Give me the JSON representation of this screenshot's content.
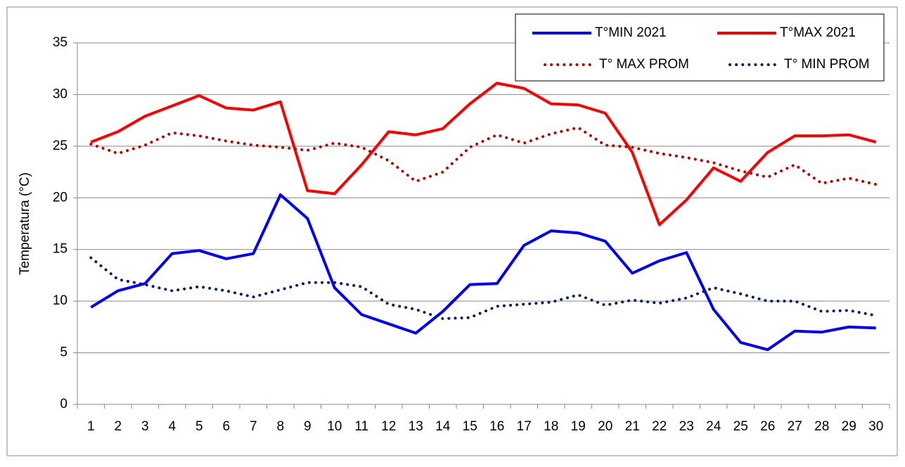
{
  "chart_data": {
    "type": "line",
    "ylabel": "Temperatura (°C)",
    "categories": [
      "1",
      "2",
      "3",
      "4",
      "5",
      "6",
      "7",
      "8",
      "9",
      "10",
      "11",
      "12",
      "13",
      "14",
      "15",
      "16",
      "17",
      "18",
      "19",
      "20",
      "21",
      "22",
      "23",
      "24",
      "25",
      "26",
      "27",
      "28",
      "29",
      "30"
    ],
    "series": [
      {
        "name": "T°MIN 2021",
        "color": "#0000ff",
        "style": "solid",
        "values": [
          9.4,
          11.0,
          11.7,
          14.6,
          14.9,
          14.1,
          14.6,
          20.3,
          18.0,
          11.3,
          8.7,
          7.8,
          6.9,
          9.0,
          11.6,
          11.7,
          15.4,
          16.8,
          16.6,
          15.8,
          12.7,
          13.9,
          14.7,
          9.2,
          6.0,
          5.3,
          7.1,
          7.0,
          7.5,
          7.4
        ]
      },
      {
        "name": "T°MAX 2021",
        "color": "#ff0000",
        "style": "solid",
        "values": [
          25.4,
          26.4,
          27.9,
          28.9,
          29.9,
          28.7,
          28.5,
          29.3,
          20.7,
          20.4,
          23.2,
          26.4,
          26.1,
          26.7,
          29.1,
          31.1,
          30.6,
          29.1,
          29.0,
          28.2,
          24.4,
          17.4,
          19.8,
          22.9,
          21.6,
          24.4,
          26.0,
          26.0,
          26.1,
          25.4
        ]
      },
      {
        "name": "T° MAX PROM",
        "color": "#c00000",
        "style": "dotted",
        "values": [
          25.2,
          24.3,
          25.1,
          26.3,
          26.0,
          25.5,
          25.1,
          24.9,
          24.6,
          25.3,
          24.9,
          23.6,
          21.6,
          22.5,
          24.9,
          26.1,
          25.3,
          26.2,
          26.8,
          25.1,
          24.9,
          24.3,
          23.9,
          23.4,
          22.6,
          22.0,
          23.2,
          21.4,
          21.9,
          21.3
        ]
      },
      {
        "name": "T° MIN PROM",
        "color": "#002060",
        "style": "dotted",
        "values": [
          14.2,
          12.1,
          11.6,
          11.0,
          11.4,
          11.0,
          10.4,
          11.1,
          11.8,
          11.8,
          11.4,
          9.7,
          9.2,
          8.3,
          8.4,
          9.5,
          9.7,
          9.9,
          10.6,
          9.6,
          10.1,
          9.8,
          10.3,
          11.3,
          10.7,
          10.0,
          10.0,
          9.0,
          9.1,
          8.6
        ]
      }
    ],
    "ylim": [
      0,
      35
    ],
    "yticks": [
      0,
      5,
      10,
      15,
      20,
      25,
      30,
      35
    ],
    "grid": true,
    "legend": "top-right"
  }
}
